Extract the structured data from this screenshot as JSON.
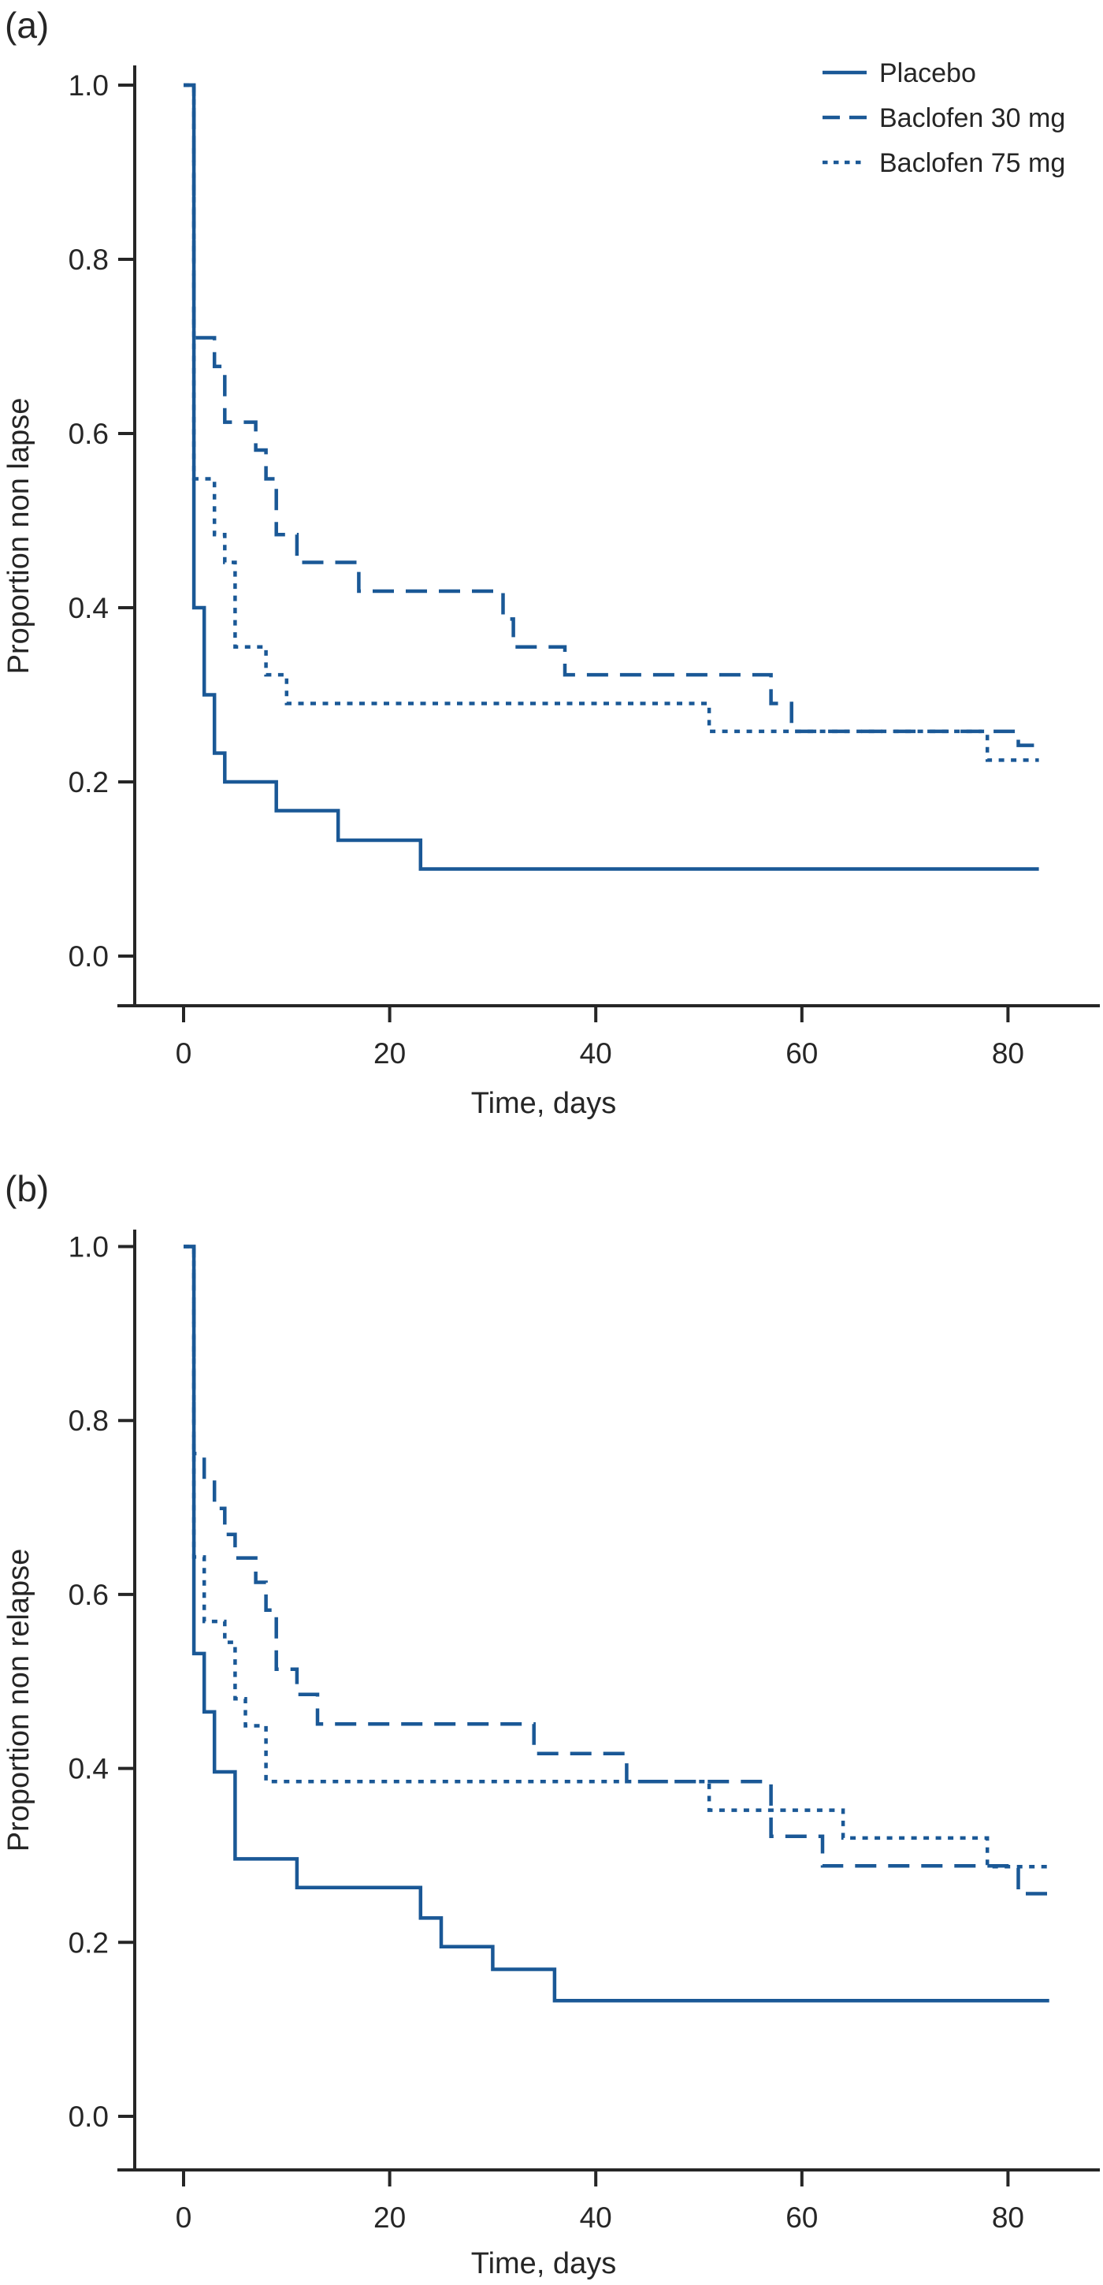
{
  "figure": {
    "panel_letters": [
      "(a)",
      "(b)"
    ],
    "colors": {
      "line": "#1a5896",
      "axis": "#262626",
      "text": "#262626",
      "background": "#ffffff"
    },
    "legend": {
      "position": "top-right-panel-a",
      "items": [
        {
          "label": "Placebo",
          "style": "solid"
        },
        {
          "label": "Baclofen 30 mg",
          "style": "dashed"
        },
        {
          "label": "Baclofen 75 mg",
          "style": "dotted"
        }
      ]
    }
  },
  "chart_data": [
    {
      "type": "line",
      "subtype": "kaplan-meier-step",
      "panel": "a",
      "title": "",
      "xlabel": "Time, days",
      "ylabel": "Proportion non lapse",
      "xlim": [
        0,
        88
      ],
      "ylim": [
        0.0,
        1.0
      ],
      "grid": false,
      "legend_position": "upper right",
      "xticks": [
        {
          "v": 0,
          "label": "0"
        },
        {
          "v": 20,
          "label": "20"
        },
        {
          "v": 40,
          "label": "40"
        },
        {
          "v": 60,
          "label": "60"
        },
        {
          "v": 80,
          "label": "80"
        }
      ],
      "yticks": [
        {
          "v": 0.0,
          "label": "0.0"
        },
        {
          "v": 0.2,
          "label": "0.2"
        },
        {
          "v": 0.4,
          "label": "0.4"
        },
        {
          "v": 0.6,
          "label": "0.6"
        },
        {
          "v": 0.8,
          "label": "0.8"
        },
        {
          "v": 1.0,
          "label": "1.0"
        }
      ],
      "series": [
        {
          "name": "Baclofen 75 mg",
          "style": "dotted",
          "steps": [
            [
              0,
              1.0
            ],
            [
              1,
              0.548
            ],
            [
              3,
              0.484
            ],
            [
              4,
              0.452
            ],
            [
              5,
              0.355
            ],
            [
              8,
              0.323
            ],
            [
              10,
              0.29
            ],
            [
              51,
              0.258
            ],
            [
              78,
              0.225
            ],
            [
              83,
              0.225
            ]
          ]
        },
        {
          "name": "Baclofen 30 mg",
          "style": "dashed",
          "steps": [
            [
              0,
              1.0
            ],
            [
              1,
              0.71
            ],
            [
              3,
              0.677
            ],
            [
              4,
              0.613
            ],
            [
              7,
              0.581
            ],
            [
              8,
              0.548
            ],
            [
              9,
              0.484
            ],
            [
              11,
              0.452
            ],
            [
              17,
              0.419
            ],
            [
              31,
              0.387
            ],
            [
              32,
              0.355
            ],
            [
              37,
              0.323
            ],
            [
              57,
              0.29
            ],
            [
              59,
              0.258
            ],
            [
              81,
              0.242
            ],
            [
              83,
              0.242
            ]
          ]
        },
        {
          "name": "Placebo",
          "style": "solid",
          "steps": [
            [
              0,
              1.0
            ],
            [
              1,
              0.4
            ],
            [
              2,
              0.3
            ],
            [
              3,
              0.233
            ],
            [
              4,
              0.2
            ],
            [
              9,
              0.167
            ],
            [
              15,
              0.133
            ],
            [
              23,
              0.1
            ],
            [
              83,
              0.1
            ]
          ]
        }
      ]
    },
    {
      "type": "line",
      "subtype": "kaplan-meier-step",
      "panel": "b",
      "title": "",
      "xlabel": "Time, days",
      "ylabel": "Proportion non relapse",
      "xlim": [
        0,
        88
      ],
      "ylim": [
        0.0,
        1.0
      ],
      "grid": false,
      "legend_position": "none",
      "xticks": [
        {
          "v": 0,
          "label": "0"
        },
        {
          "v": 20,
          "label": "20"
        },
        {
          "v": 40,
          "label": "40"
        },
        {
          "v": 60,
          "label": "60"
        },
        {
          "v": 80,
          "label": "80"
        }
      ],
      "yticks": [
        {
          "v": 0.0,
          "label": "0.0"
        },
        {
          "v": 0.2,
          "label": "0.2"
        },
        {
          "v": 0.4,
          "label": "0.4"
        },
        {
          "v": 0.6,
          "label": "0.6"
        },
        {
          "v": 0.8,
          "label": "0.8"
        },
        {
          "v": 1.0,
          "label": "1.0"
        }
      ],
      "series": [
        {
          "name": "Baclofen 75 mg",
          "style": "dotted",
          "steps": [
            [
              0,
              1.0
            ],
            [
              1,
              0.643
            ],
            [
              2,
              0.569
            ],
            [
              4,
              0.545
            ],
            [
              5,
              0.48
            ],
            [
              6,
              0.449
            ],
            [
              8,
              0.385
            ],
            [
              51,
              0.352
            ],
            [
              64,
              0.32
            ],
            [
              78,
              0.287
            ],
            [
              84,
              0.287
            ]
          ]
        },
        {
          "name": "Baclofen 30 mg",
          "style": "dashed",
          "steps": [
            [
              0,
              1.0
            ],
            [
              1,
              0.762
            ],
            [
              2,
              0.732
            ],
            [
              3,
              0.699
            ],
            [
              4,
              0.669
            ],
            [
              5,
              0.642
            ],
            [
              7,
              0.614
            ],
            [
              8,
              0.582
            ],
            [
              9,
              0.514
            ],
            [
              11,
              0.485
            ],
            [
              13,
              0.451
            ],
            [
              34,
              0.417
            ],
            [
              43,
              0.385
            ],
            [
              57,
              0.322
            ],
            [
              62,
              0.288
            ],
            [
              81,
              0.256
            ],
            [
              84,
              0.256
            ]
          ]
        },
        {
          "name": "Placebo",
          "style": "solid",
          "steps": [
            [
              0,
              1.0
            ],
            [
              1,
              0.532
            ],
            [
              2,
              0.465
            ],
            [
              3,
              0.396
            ],
            [
              5,
              0.296
            ],
            [
              11,
              0.263
            ],
            [
              23,
              0.228
            ],
            [
              25,
              0.195
            ],
            [
              30,
              0.169
            ],
            [
              36,
              0.133
            ],
            [
              84,
              0.133
            ]
          ]
        }
      ]
    }
  ]
}
